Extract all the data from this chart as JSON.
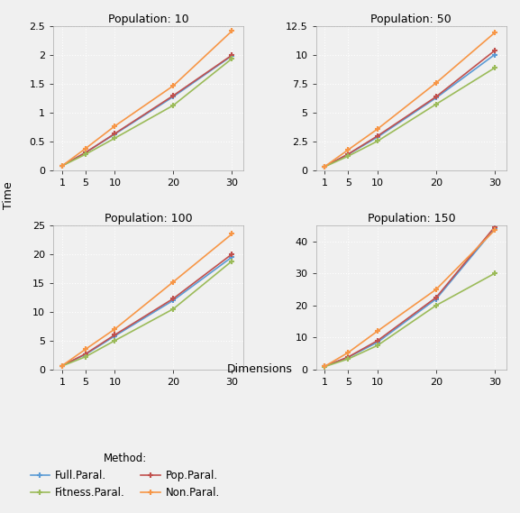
{
  "dims": [
    1,
    5,
    10,
    20,
    30
  ],
  "populations": [
    10,
    50,
    100,
    150
  ],
  "series": {
    "Full.Paral.": {
      "color": "#5b9bd5",
      "data": {
        "10": [
          0.08,
          0.31,
          0.63,
          1.28,
          1.99
        ],
        "50": [
          0.35,
          1.4,
          2.9,
          6.3,
          10.05
        ],
        "100": [
          0.65,
          2.6,
          5.8,
          12.0,
          19.5
        ],
        "150": [
          1.0,
          3.8,
          8.5,
          22.0,
          44.0
        ]
      }
    },
    "Pop.Paral.": {
      "color": "#c0504d",
      "data": {
        "10": [
          0.08,
          0.31,
          0.64,
          1.3,
          2.0
        ],
        "50": [
          0.35,
          1.43,
          3.0,
          6.4,
          10.4
        ],
        "100": [
          0.65,
          2.7,
          6.0,
          12.3,
          20.0
        ],
        "150": [
          1.0,
          3.9,
          9.0,
          22.5,
          44.5
        ]
      }
    },
    "Fitness.Paral.": {
      "color": "#9bbb59",
      "data": {
        "10": [
          0.08,
          0.28,
          0.56,
          1.13,
          1.94
        ],
        "50": [
          0.33,
          1.25,
          2.55,
          5.75,
          8.9
        ],
        "100": [
          0.6,
          2.2,
          5.0,
          10.5,
          18.8
        ],
        "150": [
          0.9,
          3.3,
          7.5,
          20.0,
          30.0
        ]
      }
    },
    "Non.Paral.": {
      "color": "#f79646",
      "data": {
        "10": [
          0.08,
          0.38,
          0.77,
          1.47,
          2.42
        ],
        "50": [
          0.35,
          1.8,
          3.6,
          7.6,
          11.95
        ],
        "100": [
          0.65,
          3.5,
          7.0,
          15.2,
          23.5
        ],
        "150": [
          1.0,
          5.3,
          12.0,
          25.0,
          43.5
        ]
      }
    }
  },
  "ylims": {
    "10": [
      0,
      2.5
    ],
    "50": [
      0,
      12.5
    ],
    "100": [
      0,
      25
    ],
    "150": [
      0,
      45
    ]
  },
  "yticks": {
    "10": [
      0.0,
      0.5,
      1.0,
      1.5,
      2.0,
      2.5
    ],
    "50": [
      0.0,
      2.5,
      5.0,
      7.5,
      10.0,
      12.5
    ],
    "100": [
      0,
      5,
      10,
      15,
      20,
      25
    ],
    "150": [
      0,
      10,
      20,
      30,
      40
    ]
  },
  "xticks": [
    1,
    5,
    10,
    20,
    30
  ],
  "xlabel": "Dimensions",
  "ylabel": "Time",
  "legend_title": "Method:",
  "background_color": "#f0f0f0",
  "grid_color": "#ffffff",
  "title_fontsize": 9,
  "label_fontsize": 9,
  "tick_fontsize": 8,
  "legend_fontsize": 8.5
}
